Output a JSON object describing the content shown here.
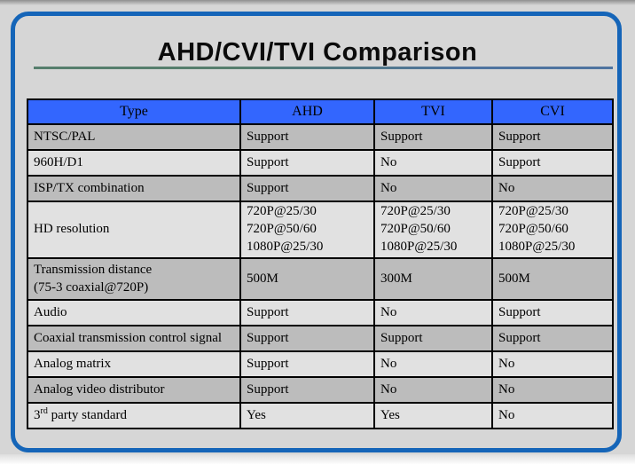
{
  "slide": {
    "title": "AHD/CVI/TVI Comparison",
    "frame_color": "#1565b8",
    "header_bg": "#3366fe",
    "row_dark_bg": "#bcbcbc",
    "row_light_bg": "#e1e1e1",
    "underline_left_color": "#567e6d",
    "underline_right_color": "#4f74a0"
  },
  "table": {
    "headers": [
      "Type",
      "AHD",
      "TVI",
      "CVI"
    ],
    "rows": [
      {
        "cells": [
          "NTSC/PAL",
          "Support",
          "Support",
          "Support"
        ]
      },
      {
        "cells": [
          "960H/D1",
          "Support",
          "No",
          "Support"
        ]
      },
      {
        "cells": [
          "ISP/TX combination",
          "Support",
          "No",
          "No"
        ]
      },
      {
        "cells": [
          "HD resolution",
          "720P@25/30\n720P@50/60\n1080P@25/30",
          "720P@25/30\n720P@50/60\n1080P@25/30",
          "720P@25/30\n720P@50/60\n1080P@25/30"
        ]
      },
      {
        "cells": [
          "Transmission distance\n(75-3 coaxial@720P)",
          "500M",
          "300M",
          "500M"
        ]
      },
      {
        "cells": [
          "Audio",
          "Support",
          "No",
          "Support"
        ]
      },
      {
        "cells": [
          "Coaxial transmission control signal",
          "Support",
          "Support",
          "Support"
        ]
      },
      {
        "cells": [
          "Analog matrix",
          "Support",
          "No",
          "No"
        ]
      },
      {
        "cells": [
          "Analog video distributor",
          "Support",
          "No",
          "No"
        ]
      },
      {
        "cells": [
          {
            "parts": [
              {
                "t": "3"
              },
              {
                "t": "rd",
                "sup": true
              },
              {
                "t": " party standard"
              }
            ]
          },
          "Yes",
          "Yes",
          "No"
        ]
      }
    ]
  }
}
